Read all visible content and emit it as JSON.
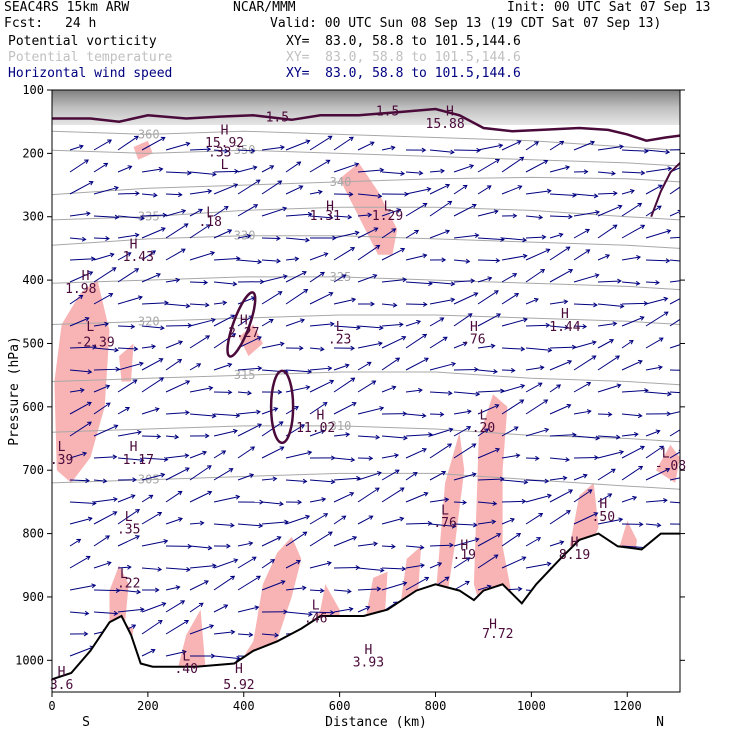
{
  "header": {
    "model": "SEAC4RS 15km ARW",
    "center": "NCAR/MMM",
    "init": "Init: 00 UTC Sat 07 Sep 13",
    "fcst_label": "Fcst:",
    "fcst_value": "24 h",
    "valid": "Valid: 00 UTC Sun 08 Sep 13 (19 CDT Sat 07 Sep 13)"
  },
  "fields": [
    {
      "name": "Potential vorticity",
      "xy": "XY=  83.0, 58.8 to 101.5,144.6",
      "color": "#000000"
    },
    {
      "name": "Potential temperature",
      "xy": "XY=  83.0, 58.8 to 101.5,144.6",
      "color": "#c0c0c0"
    },
    {
      "name": "Horizontal wind speed",
      "xy": "XY=  83.0, 58.8 to 101.5,144.6",
      "color": "#000080"
    }
  ],
  "chart_data": {
    "type": "cross-section",
    "xlabel": "Distance (km)",
    "ylabel": "Pressure (hPa)",
    "xlim": [
      0,
      1310
    ],
    "ylim": [
      1050,
      100
    ],
    "x_ticks": [
      0,
      200,
      400,
      600,
      800,
      1000,
      1200
    ],
    "y_ticks": [
      100,
      200,
      300,
      400,
      500,
      600,
      700,
      800,
      900,
      1000
    ],
    "end_labels": {
      "left": "S",
      "right": "N"
    },
    "terrain": [
      [
        0,
        1030
      ],
      [
        40,
        1020
      ],
      [
        80,
        985
      ],
      [
        120,
        940
      ],
      [
        145,
        930
      ],
      [
        165,
        960
      ],
      [
        185,
        1005
      ],
      [
        210,
        1010
      ],
      [
        260,
        1010
      ],
      [
        300,
        1010
      ],
      [
        380,
        1005
      ],
      [
        420,
        985
      ],
      [
        470,
        970
      ],
      [
        520,
        950
      ],
      [
        560,
        930
      ],
      [
        600,
        930
      ],
      [
        650,
        930
      ],
      [
        700,
        920
      ],
      [
        760,
        890
      ],
      [
        800,
        880
      ],
      [
        850,
        890
      ],
      [
        880,
        905
      ],
      [
        900,
        890
      ],
      [
        940,
        880
      ],
      [
        980,
        910
      ],
      [
        1010,
        880
      ],
      [
        1060,
        840
      ],
      [
        1100,
        810
      ],
      [
        1140,
        800
      ],
      [
        1180,
        820
      ],
      [
        1230,
        825
      ],
      [
        1270,
        800
      ],
      [
        1310,
        800
      ]
    ],
    "tropopause_pv": [
      [
        0,
        145
      ],
      [
        80,
        145
      ],
      [
        140,
        150
      ],
      [
        200,
        140
      ],
      [
        280,
        145
      ],
      [
        350,
        142
      ],
      [
        420,
        140
      ],
      [
        500,
        147
      ],
      [
        560,
        140
      ],
      [
        640,
        140
      ],
      [
        720,
        135
      ],
      [
        800,
        130
      ],
      [
        850,
        140
      ],
      [
        900,
        160
      ],
      [
        960,
        165
      ],
      [
        1020,
        163
      ],
      [
        1100,
        160
      ],
      [
        1160,
        163
      ],
      [
        1200,
        170
      ],
      [
        1240,
        180
      ],
      [
        1280,
        175
      ],
      [
        1310,
        172
      ]
    ],
    "isentropes": [
      {
        "label": "360",
        "points": [
          [
            0,
            165
          ],
          [
            200,
            170
          ],
          [
            400,
            165
          ],
          [
            600,
            170
          ],
          [
            800,
            175
          ],
          [
            1000,
            180
          ],
          [
            1200,
            190
          ],
          [
            1310,
            195
          ]
        ]
      },
      {
        "label": "350",
        "points": [
          [
            0,
            195
          ],
          [
            200,
            200
          ],
          [
            400,
            195
          ],
          [
            600,
            200
          ],
          [
            800,
            205
          ],
          [
            1000,
            210
          ],
          [
            1200,
            215
          ],
          [
            1310,
            220
          ]
        ]
      },
      {
        "label": "340",
        "points": [
          [
            0,
            265
          ],
          [
            200,
            255
          ],
          [
            400,
            250
          ],
          [
            600,
            245
          ],
          [
            800,
            240
          ],
          [
            1000,
            238
          ],
          [
            1200,
            240
          ],
          [
            1310,
            245
          ]
        ]
      },
      {
        "label": "335",
        "points": [
          [
            0,
            305
          ],
          [
            200,
            300
          ],
          [
            400,
            290
          ],
          [
            600,
            285
          ],
          [
            800,
            285
          ],
          [
            1000,
            290
          ],
          [
            1200,
            300
          ],
          [
            1310,
            305
          ]
        ]
      },
      {
        "label": "330",
        "points": [
          [
            0,
            345
          ],
          [
            200,
            335
          ],
          [
            400,
            330
          ],
          [
            600,
            330
          ],
          [
            800,
            335
          ],
          [
            1000,
            340
          ],
          [
            1200,
            345
          ],
          [
            1310,
            350
          ]
        ]
      },
      {
        "label": "325",
        "points": [
          [
            0,
            405
          ],
          [
            200,
            400
          ],
          [
            400,
            395
          ],
          [
            600,
            395
          ],
          [
            800,
            400
          ],
          [
            1000,
            405
          ],
          [
            1200,
            410
          ],
          [
            1310,
            415
          ]
        ]
      },
      {
        "label": "320",
        "points": [
          [
            0,
            470
          ],
          [
            200,
            465
          ],
          [
            400,
            460
          ],
          [
            600,
            455
          ],
          [
            800,
            455
          ],
          [
            1000,
            460
          ],
          [
            1200,
            465
          ],
          [
            1310,
            470
          ]
        ]
      },
      {
        "label": "315",
        "points": [
          [
            0,
            560
          ],
          [
            200,
            555
          ],
          [
            400,
            550
          ],
          [
            600,
            545
          ],
          [
            800,
            545
          ],
          [
            1000,
            555
          ],
          [
            1200,
            560
          ],
          [
            1310,
            565
          ]
        ]
      },
      {
        "label": "310",
        "points": [
          [
            0,
            640
          ],
          [
            200,
            635
          ],
          [
            400,
            630
          ],
          [
            600,
            630
          ],
          [
            800,
            635
          ],
          [
            1000,
            645
          ],
          [
            1200,
            650
          ],
          [
            1310,
            655
          ]
        ]
      },
      {
        "label": "305",
        "points": [
          [
            0,
            720
          ],
          [
            200,
            715
          ],
          [
            400,
            710
          ],
          [
            600,
            705
          ],
          [
            800,
            705
          ],
          [
            1000,
            715
          ],
          [
            1200,
            725
          ],
          [
            1310,
            730
          ]
        ]
      }
    ],
    "labels": [
      {
        "text": "1.5",
        "x": 470,
        "y": 150
      },
      {
        "text": "1.5",
        "x": 700,
        "y": 140
      },
      {
        "text": "H",
        "x": 70,
        "y": 400
      },
      {
        "text": "1.98",
        "x": 60,
        "y": 420
      },
      {
        "text": "H",
        "x": 170,
        "y": 350
      },
      {
        "text": "1.43",
        "x": 180,
        "y": 370
      },
      {
        "text": "L",
        "x": 80,
        "y": 480
      },
      {
        "text": "-2.39",
        "x": 90,
        "y": 505
      },
      {
        "text": "H",
        "x": 360,
        "y": 170
      },
      {
        "text": "15.92",
        "x": 360,
        "y": 190
      },
      {
        "text": "H",
        "x": 830,
        "y": 140
      },
      {
        "text": "15.88",
        "x": 820,
        "y": 160
      },
      {
        "text": "H",
        "x": 580,
        "y": 290
      },
      {
        "text": "1.31",
        "x": 570,
        "y": 305
      },
      {
        "text": "L",
        "x": 700,
        "y": 290
      },
      {
        "text": "1.29",
        "x": 700,
        "y": 305
      },
      {
        "text": "H",
        "x": 400,
        "y": 470
      },
      {
        "text": "2.27",
        "x": 400,
        "y": 490
      },
      {
        "text": "L",
        "x": 600,
        "y": 480
      },
      {
        "text": ".23",
        "x": 600,
        "y": 500
      },
      {
        "text": "H",
        "x": 560,
        "y": 620
      },
      {
        "text": "11.02",
        "x": 550,
        "y": 640
      },
      {
        "text": "H",
        "x": 880,
        "y": 480
      },
      {
        "text": ".76",
        "x": 880,
        "y": 500
      },
      {
        "text": "H",
        "x": 1070,
        "y": 460
      },
      {
        "text": "1.44",
        "x": 1070,
        "y": 480
      },
      {
        "text": "L",
        "x": 900,
        "y": 620
      },
      {
        "text": ".20",
        "x": 900,
        "y": 640
      },
      {
        "text": "L",
        "x": 1280,
        "y": 680
      },
      {
        "text": "-.08",
        "x": 1290,
        "y": 700
      },
      {
        "text": "H",
        "x": 1150,
        "y": 760
      },
      {
        "text": ".50",
        "x": 1150,
        "y": 780
      },
      {
        "text": "L",
        "x": 820,
        "y": 770
      },
      {
        "text": ".76",
        "x": 820,
        "y": 790
      },
      {
        "text": "H",
        "x": 1090,
        "y": 820
      },
      {
        "text": "8.19",
        "x": 1090,
        "y": 840
      },
      {
        "text": "H",
        "x": 860,
        "y": 825
      },
      {
        "text": ".19",
        "x": 860,
        "y": 840
      },
      {
        "text": "H",
        "x": 920,
        "y": 950
      },
      {
        "text": "7.72",
        "x": 930,
        "y": 965
      },
      {
        "text": "L",
        "x": 160,
        "y": 780
      },
      {
        "text": ".35",
        "x": 160,
        "y": 800
      },
      {
        "text": "L",
        "x": 150,
        "y": 870
      },
      {
        "text": ".22",
        "x": 160,
        "y": 885
      },
      {
        "text": "L",
        "x": 550,
        "y": 920
      },
      {
        "text": ".46",
        "x": 550,
        "y": 940
      },
      {
        "text": "H",
        "x": 660,
        "y": 990
      },
      {
        "text": "3.93",
        "x": 660,
        "y": 1010
      },
      {
        "text": "L",
        "x": 280,
        "y": 1000
      },
      {
        "text": ".40",
        "x": 280,
        "y": 1020
      },
      {
        "text": "H",
        "x": 390,
        "y": 1020
      },
      {
        "text": "5.92",
        "x": 390,
        "y": 1045
      },
      {
        "text": "L",
        "x": 20,
        "y": 670
      },
      {
        "text": ".39",
        "x": 20,
        "y": 690
      },
      {
        "text": "H",
        "x": 170,
        "y": 670
      },
      {
        "text": "1.17",
        "x": 180,
        "y": 690
      },
      {
        "text": "L",
        "x": 360,
        "y": 225
      },
      {
        "text": ".33",
        "x": 350,
        "y": 205
      },
      {
        "text": "L",
        "x": 330,
        "y": 300
      },
      {
        "text": ".18",
        "x": 330,
        "y": 315
      },
      {
        "text": "H",
        "x": 20,
        "y": 1025
      },
      {
        "text": "3.6",
        "x": 20,
        "y": 1045
      }
    ],
    "colors": {
      "pv_fill": "#f8b4b4",
      "pv_contour": "#4a0a3a",
      "isentrope": "#a8a8a8",
      "wind": "#000080",
      "terrain": "#000000"
    }
  }
}
